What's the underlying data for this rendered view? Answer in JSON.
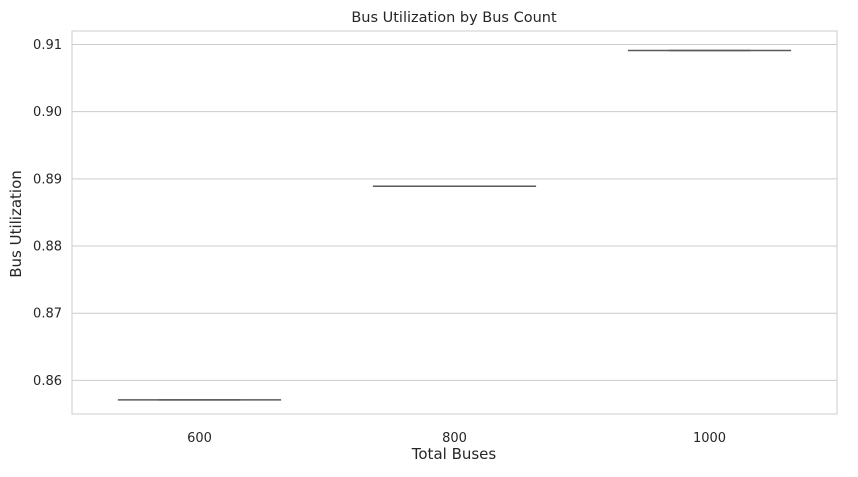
{
  "chart_data": {
    "type": "box",
    "title": "Bus Utilization by Bus Count",
    "xlabel": "Total Buses",
    "ylabel": "Bus Utilization",
    "categories": [
      "600",
      "800",
      "1000"
    ],
    "values": [
      0.8571,
      0.8889,
      0.9091
    ],
    "ylim": [
      0.855,
      0.912
    ],
    "yticks": [
      0.86,
      0.87,
      0.88,
      0.89,
      0.9,
      0.91
    ],
    "ytick_labels": [
      "0.86",
      "0.87",
      "0.88",
      "0.89",
      "0.90",
      "0.91"
    ],
    "grid": "horizontal",
    "legend": "none",
    "colors": {
      "background": "#ffffff",
      "grid": "#cccccc",
      "axes_edge": "#cccccc",
      "box_line": "#5a5a5a",
      "text": "#262626"
    }
  }
}
